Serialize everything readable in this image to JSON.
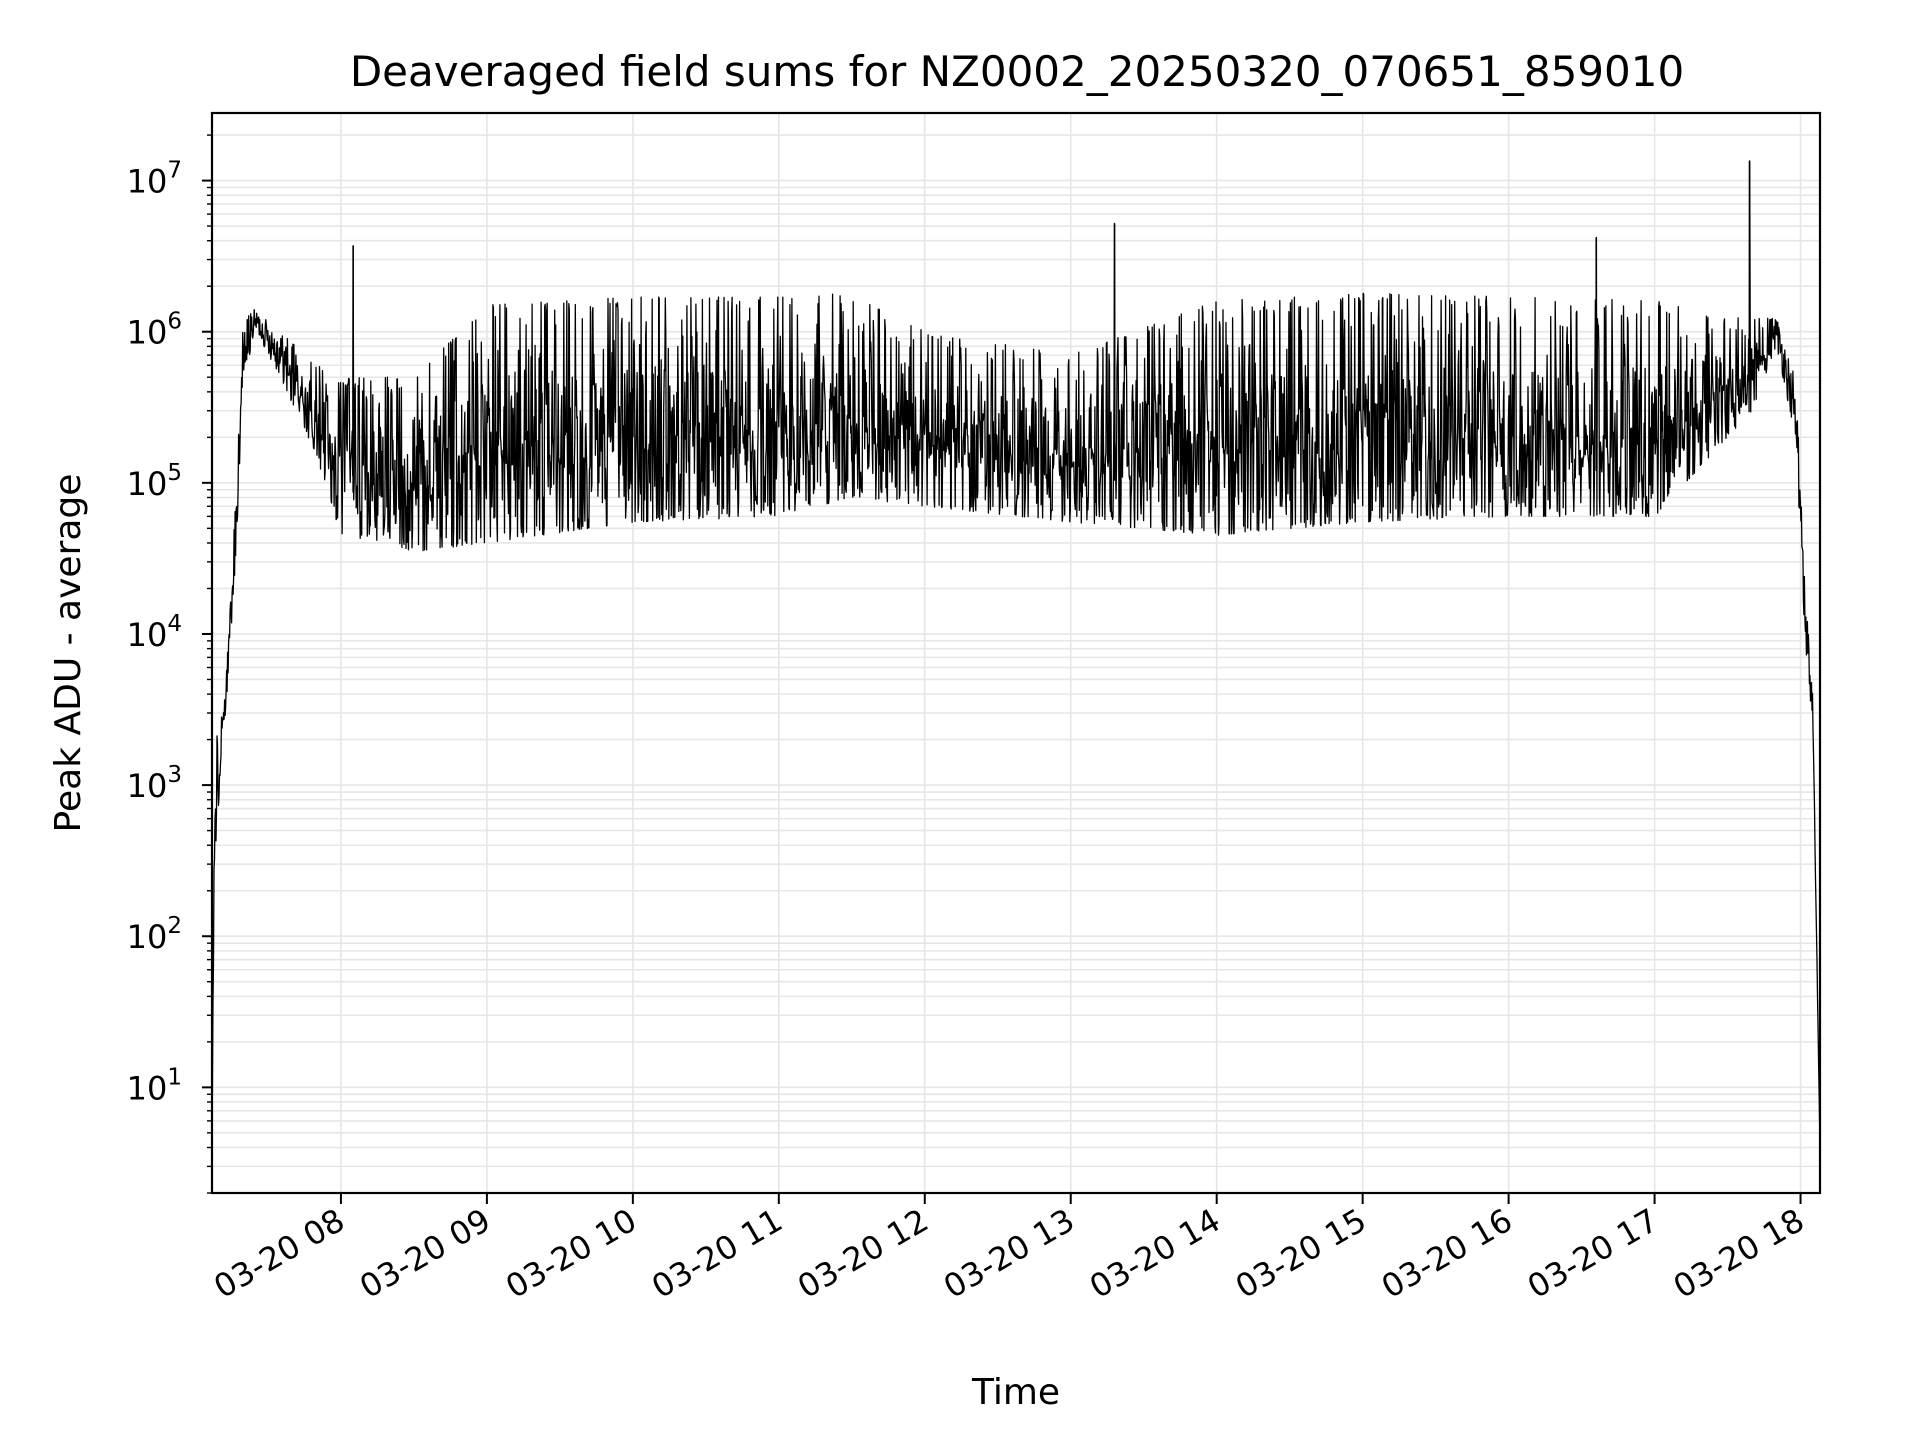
{
  "chart_data": {
    "type": "line",
    "title": "Deaveraged field sums for NZ0002_20250320_070651_859010",
    "xlabel": "Time",
    "ylabel": "Peak ADU - average",
    "x_axis": {
      "kind": "datetime",
      "range": [
        "2025-03-20 07:07",
        "2025-03-20 18:08"
      ],
      "tick_labels": [
        "03-20 08",
        "03-20 09",
        "03-20 10",
        "03-20 11",
        "03-20 12",
        "03-20 13",
        "03-20 14",
        "03-20 15",
        "03-20 16",
        "03-20 17",
        "03-20 18"
      ],
      "tick_hours": [
        8,
        9,
        10,
        11,
        12,
        13,
        14,
        15,
        16,
        17,
        18
      ]
    },
    "y_axis": {
      "scale": "log",
      "range": [
        2,
        28000000
      ],
      "tick_exponents": [
        1,
        2,
        3,
        4,
        5,
        6,
        7
      ],
      "tick_labels": [
        "10^1",
        "10^2",
        "10^3",
        "10^4",
        "10^5",
        "10^6",
        "10^7"
      ]
    },
    "grid": true,
    "legend": "none",
    "colors": {
      "line": "#000000",
      "grid": "#e6e6e6",
      "axes": "#000000"
    },
    "series": [
      {
        "envelope": [
          {
            "x": "07:07",
            "min": 4,
            "max": 4
          },
          {
            "x": "07:08",
            "min": 300,
            "max": 2000
          },
          {
            "x": "07:12",
            "min": 2500,
            "max": 3500
          },
          {
            "x": "07:15",
            "min": 8000,
            "max": 20000
          },
          {
            "x": "07:20",
            "min": 500000,
            "max": 1400000
          },
          {
            "x": "07:25",
            "min": 1000000,
            "max": 1400000
          },
          {
            "x": "07:35",
            "min": 500000,
            "max": 1000000
          },
          {
            "x": "07:50",
            "min": 150000,
            "max": 600000
          },
          {
            "x": "08:00",
            "min": 45000,
            "max": 500000
          },
          {
            "x": "08:30",
            "min": 35000,
            "max": 500000
          },
          {
            "x": "09:00",
            "min": 40000,
            "max": 1500000
          },
          {
            "x": "10:00",
            "min": 55000,
            "max": 1700000
          },
          {
            "x": "11:00",
            "min": 60000,
            "max": 1700000
          },
          {
            "x": "11:30",
            "min": 80000,
            "max": 1800000
          },
          {
            "x": "12:00",
            "min": 70000,
            "max": 1000000
          },
          {
            "x": "13:00",
            "min": 55000,
            "max": 700000
          },
          {
            "x": "14:00",
            "min": 45000,
            "max": 1600000
          },
          {
            "x": "15:00",
            "min": 55000,
            "max": 1800000
          },
          {
            "x": "16:00",
            "min": 60000,
            "max": 1700000
          },
          {
            "x": "17:00",
            "min": 60000,
            "max": 1600000
          },
          {
            "x": "17:40",
            "min": 300000,
            "max": 1200000
          },
          {
            "x": "17:50",
            "min": 800000,
            "max": 1300000
          },
          {
            "x": "17:58",
            "min": 200000,
            "max": 500000
          },
          {
            "x": "18:02",
            "min": 8000,
            "max": 20000
          },
          {
            "x": "18:05",
            "min": 2500,
            "max": 4000
          },
          {
            "x": "18:08",
            "min": 4,
            "max": 4
          }
        ],
        "spikes": [
          {
            "x": "08:05",
            "y": 3700000
          },
          {
            "x": "13:18",
            "y": 5200000
          },
          {
            "x": "16:36",
            "y": 4200000
          },
          {
            "x": "17:39",
            "y": 13500000
          }
        ]
      }
    ]
  }
}
